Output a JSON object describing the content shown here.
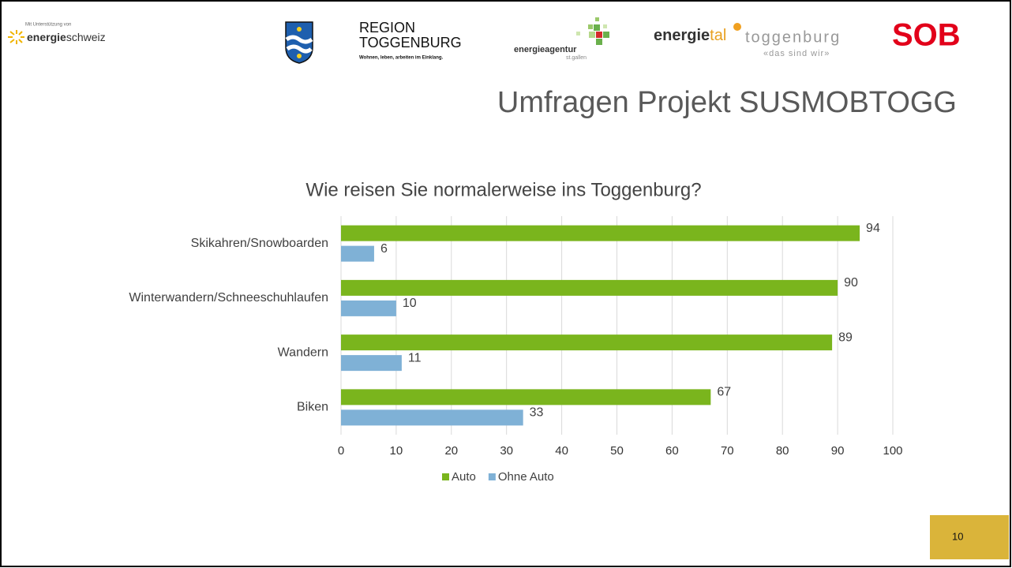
{
  "header": {
    "support_note": "Mit Unterstützung von",
    "energieschweiz_a": "energie",
    "energieschweiz_b": "schweiz",
    "region_line1": "REGION",
    "region_line2": "TOGGENBURG",
    "region_tagline": "Wohnen, leben, arbeiten im Einklang.",
    "agentur": "energieagentur",
    "agentur_sub": "st.gallen",
    "energietal_a": "energie",
    "energietal_b": "tal",
    "energietal_c": "toggenburg",
    "energietal_sub": "«das sind wir»",
    "sob": "SOB"
  },
  "slide_title": "Umfragen Projekt SUSMOBTOGG",
  "page_number": "10",
  "chart_data": {
    "type": "hbar",
    "title": "Wie reisen Sie normalerweise ins Toggenburg?",
    "categories": [
      "Skikahren/Snowboarden",
      "Winterwandern/Schneeschuhlaufen",
      "Wandern",
      "Biken"
    ],
    "series": [
      {
        "name": "Auto",
        "color": "#7ab51d",
        "values": [
          94,
          90,
          89,
          67
        ]
      },
      {
        "name": "Ohne Auto",
        "color": "#7fb1d6",
        "values": [
          6,
          10,
          11,
          33
        ]
      }
    ],
    "xlim": [
      0,
      100
    ],
    "xticks": [
      0,
      10,
      20,
      30,
      40,
      50,
      60,
      70,
      80,
      90,
      100
    ],
    "grid": true,
    "legend": "bottom"
  }
}
